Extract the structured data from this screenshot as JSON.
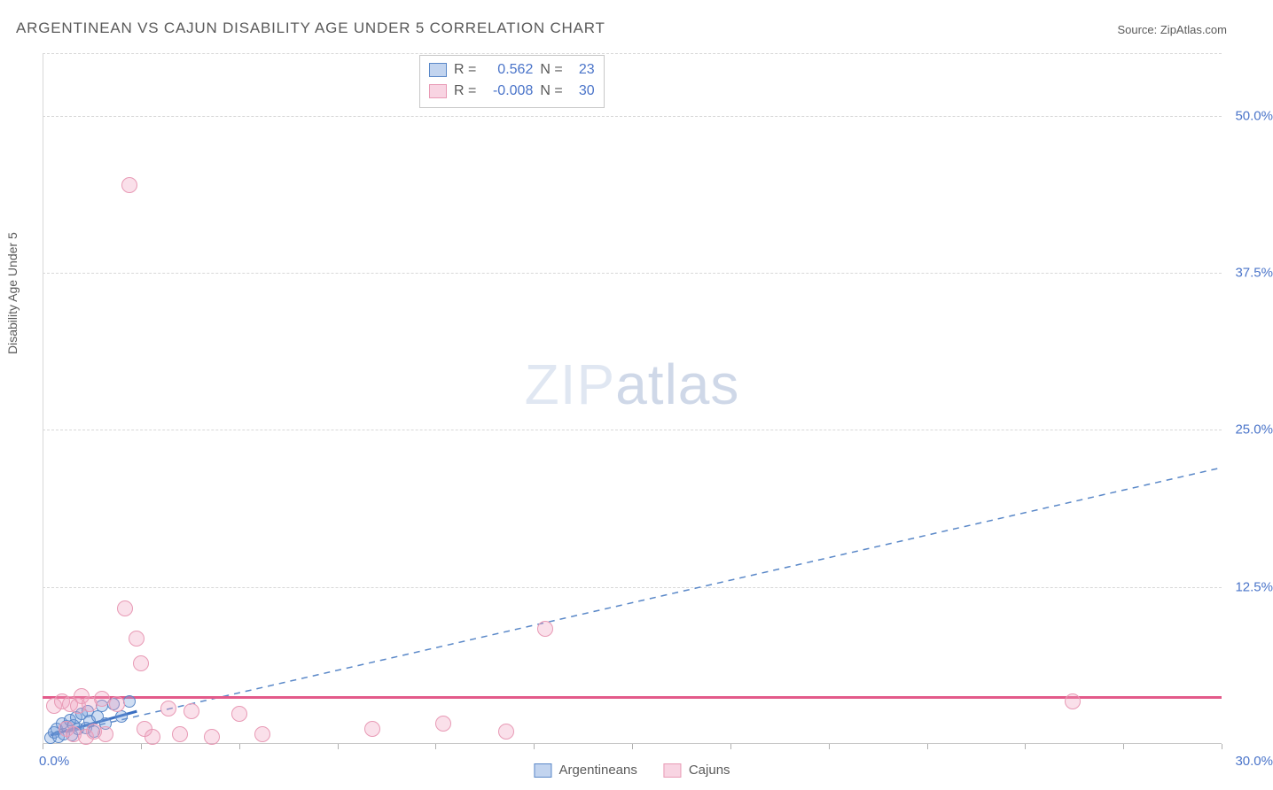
{
  "title": "ARGENTINEAN VS CAJUN DISABILITY AGE UNDER 5 CORRELATION CHART",
  "source_prefix": "Source: ",
  "source_name": "ZipAtlas.com",
  "y_axis_label": "Disability Age Under 5",
  "watermark_a": "ZIP",
  "watermark_b": "atlas",
  "chart": {
    "type": "scatter",
    "xlim": [
      0,
      30
    ],
    "ylim": [
      0,
      55
    ],
    "x_tick_step": 2.5,
    "x_tick_labels": {
      "min": "0.0%",
      "max": "30.0%"
    },
    "y_grid": [
      12.5,
      25.0,
      37.5,
      50.0
    ],
    "y_grid_labels": [
      "12.5%",
      "25.0%",
      "37.5%",
      "50.0%"
    ],
    "grid_color": "#d8d8d8",
    "axis_color": "#c8c8c8",
    "tick_label_color": "#4a74c9",
    "background_color": "#ffffff",
    "series": [
      {
        "name": "Argentineans",
        "color_fill": "rgba(120,160,220,0.35)",
        "color_stroke": "#5a88c8",
        "marker_radius_px": 7,
        "R": "0.562",
        "N": "23",
        "trend": {
          "style": "dashed",
          "color": "#5a88c8",
          "width": 1.5,
          "x1": 0.3,
          "y1": 0.7,
          "x2": 30,
          "y2": 22.0
        },
        "points": [
          [
            0.2,
            0.5
          ],
          [
            0.3,
            0.9
          ],
          [
            0.35,
            1.2
          ],
          [
            0.4,
            0.6
          ],
          [
            0.5,
            1.6
          ],
          [
            0.55,
            0.8
          ],
          [
            0.6,
            1.4
          ],
          [
            0.7,
            1.9
          ],
          [
            0.75,
            0.7
          ],
          [
            0.8,
            1.5
          ],
          [
            0.85,
            2.1
          ],
          [
            0.9,
            1.2
          ],
          [
            1.0,
            2.4
          ],
          [
            1.1,
            1.3
          ],
          [
            1.15,
            2.6
          ],
          [
            1.2,
            1.8
          ],
          [
            1.3,
            1.0
          ],
          [
            1.4,
            2.2
          ],
          [
            1.5,
            3.0
          ],
          [
            1.6,
            1.6
          ],
          [
            1.8,
            3.2
          ],
          [
            2.0,
            2.2
          ],
          [
            2.2,
            3.4
          ]
        ]
      },
      {
        "name": "Cajuns",
        "color_fill": "rgba(240,160,190,0.32)",
        "color_stroke": "#e89ab5",
        "marker_radius_px": 9,
        "R": "-0.008",
        "N": "30",
        "trend": {
          "style": "solid",
          "color": "#e35a8a",
          "width": 3,
          "y_const": 3.6
        },
        "points": [
          [
            0.3,
            3.0
          ],
          [
            0.5,
            3.4
          ],
          [
            0.6,
            1.2
          ],
          [
            0.7,
            3.2
          ],
          [
            0.8,
            0.8
          ],
          [
            0.9,
            3.0
          ],
          [
            1.0,
            3.8
          ],
          [
            1.1,
            0.6
          ],
          [
            1.2,
            3.2
          ],
          [
            1.3,
            1.0
          ],
          [
            1.5,
            3.6
          ],
          [
            1.6,
            0.8
          ],
          [
            1.9,
            3.2
          ],
          [
            2.1,
            10.8
          ],
          [
            2.2,
            44.5
          ],
          [
            2.4,
            8.4
          ],
          [
            2.5,
            6.4
          ],
          [
            2.6,
            1.2
          ],
          [
            2.8,
            0.6
          ],
          [
            3.2,
            2.8
          ],
          [
            3.5,
            0.8
          ],
          [
            3.8,
            2.6
          ],
          [
            4.3,
            0.6
          ],
          [
            5.0,
            2.4
          ],
          [
            5.6,
            0.8
          ],
          [
            8.4,
            1.2
          ],
          [
            10.2,
            1.6
          ],
          [
            11.8,
            1.0
          ],
          [
            12.8,
            9.2
          ],
          [
            26.2,
            3.4
          ]
        ]
      }
    ],
    "stat_box": {
      "rows": [
        {
          "swatch": "blue",
          "r_label": "R =",
          "r_val": "0.562",
          "n_label": "N =",
          "n_val": "23"
        },
        {
          "swatch": "pink",
          "r_label": "R =",
          "r_val": "-0.008",
          "n_label": "N =",
          "n_val": "30"
        }
      ]
    },
    "legend": [
      {
        "swatch": "blue",
        "label": "Argentineans"
      },
      {
        "swatch": "pink",
        "label": "Cajuns"
      }
    ]
  }
}
